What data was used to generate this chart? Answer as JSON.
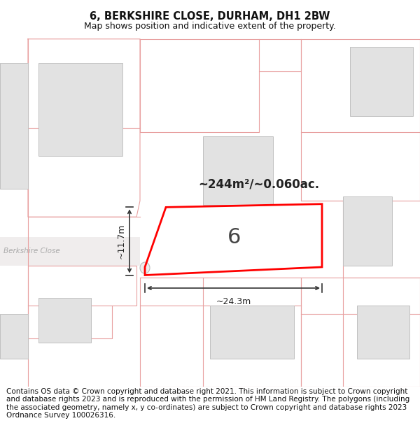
{
  "title": "6, BERKSHIRE CLOSE, DURHAM, DH1 2BW",
  "subtitle": "Map shows position and indicative extent of the property.",
  "footer": "Contains OS data © Crown copyright and database right 2021. This information is subject to Crown copyright and database rights 2023 and is reproduced with the permission of HM Land Registry. The polygons (including the associated geometry, namely x, y co-ordinates) are subject to Crown copyright and database rights 2023 Ordnance Survey 100026316.",
  "area_text": "~244m²/~0.060ac.",
  "label_number": "6",
  "dim_width": "~24.3m",
  "dim_height": "~11.7m",
  "street_label": "Berkshire Close",
  "bg_color": "#ffffff",
  "map_bg": "#ffffff",
  "plot_outline_color": "#ff0000",
  "neighbor_line_color": "#f0a0a0",
  "building_fill": "#e2e2e2",
  "building_outline": "#c0c0c0",
  "dim_line_color": "#333333",
  "title_fontsize": 10.5,
  "subtitle_fontsize": 9,
  "footer_fontsize": 7.5
}
